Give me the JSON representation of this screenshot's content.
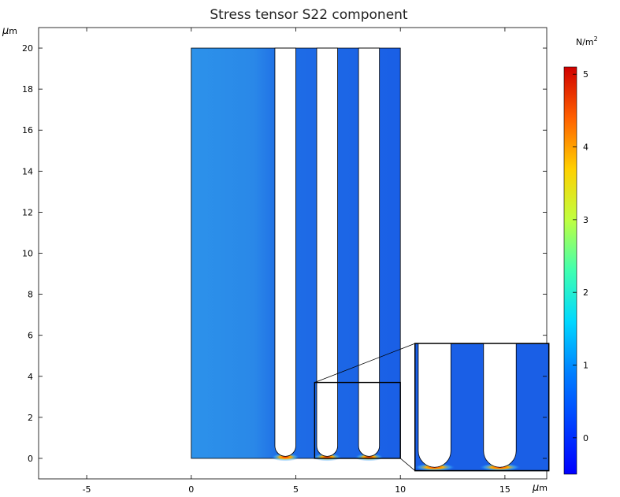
{
  "chart_data": {
    "type": "heatmap",
    "title": "Stress tensor S22 component",
    "xunit": {
      "mu": "μ",
      "m": "m"
    },
    "yunit": {
      "mu": "μ",
      "m": "m"
    },
    "xlim": [
      -7.3,
      17
    ],
    "ylim": [
      -1,
      21
    ],
    "xticks": [
      -5,
      0,
      5,
      10,
      15
    ],
    "yticks": [
      0,
      2,
      4,
      6,
      8,
      10,
      12,
      14,
      16,
      18,
      20
    ],
    "domain": {
      "x": [
        0,
        10
      ],
      "y": [
        0,
        20
      ]
    },
    "slots": [
      {
        "center_x": 4.5,
        "width": 1.0,
        "bottom": 0.1,
        "top": 20
      },
      {
        "center_x": 6.5,
        "width": 1.0,
        "bottom": 0.1,
        "top": 20
      },
      {
        "center_x": 8.5,
        "width": 1.0,
        "bottom": 0.1,
        "top": 20
      }
    ],
    "zoom_source": {
      "x": [
        5.9,
        10
      ],
      "y": [
        0,
        3.7
      ]
    },
    "zoom_inset": {
      "x": [
        10.7,
        17.1
      ],
      "y": [
        -0.6,
        5.6
      ]
    },
    "colorbar": {
      "unit": {
        "base": "N/m",
        "exp": "2"
      },
      "range": [
        -0.5,
        5.1
      ],
      "ticks": [
        0,
        1,
        2,
        3,
        4,
        5
      ],
      "colormap": "jet"
    },
    "colors": {
      "background_field": "#1e6fe6",
      "left_field": "#2a8ee8",
      "hotspot": "#ff7a00"
    }
  }
}
